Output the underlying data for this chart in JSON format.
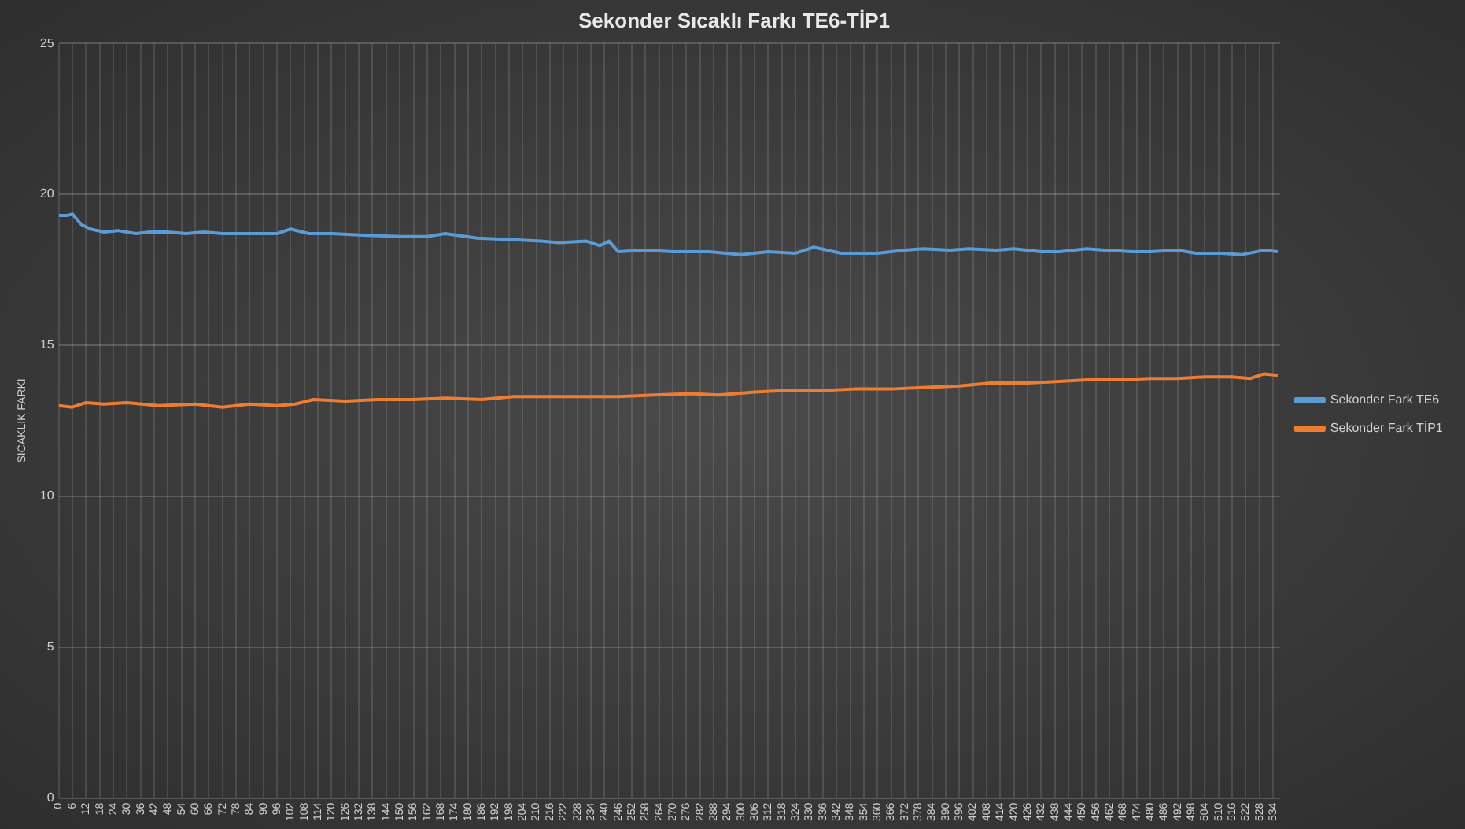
{
  "chart_data": {
    "type": "line",
    "title": "Sekonder Sıcaklı Farkı TE6-TİP1",
    "ylabel": "SICAKLIK FARKI",
    "xlim": [
      0,
      537
    ],
    "ylim": [
      0,
      25
    ],
    "yticks": [
      0,
      5,
      10,
      15,
      20,
      25
    ],
    "xticks": [
      0,
      6,
      12,
      18,
      24,
      30,
      36,
      42,
      48,
      54,
      60,
      66,
      72,
      78,
      84,
      90,
      96,
      102,
      108,
      114,
      120,
      126,
      132,
      138,
      144,
      150,
      156,
      162,
      168,
      174,
      180,
      186,
      192,
      198,
      204,
      210,
      216,
      222,
      228,
      234,
      240,
      246,
      252,
      258,
      264,
      270,
      276,
      282,
      288,
      294,
      300,
      306,
      312,
      318,
      324,
      330,
      336,
      342,
      348,
      354,
      360,
      366,
      372,
      378,
      384,
      390,
      396,
      402,
      408,
      414,
      420,
      426,
      432,
      438,
      444,
      450,
      456,
      462,
      468,
      474,
      480,
      486,
      492,
      498,
      504,
      510,
      516,
      522,
      528,
      534
    ],
    "grid": true,
    "legend": "right",
    "marker": "none",
    "line_style": "solid",
    "series": [
      {
        "name": "Sekonder Fark TE6",
        "color": "#5b9bd5",
        "x": [
          0,
          4,
          6,
          10,
          14,
          20,
          26,
          34,
          40,
          48,
          56,
          64,
          72,
          84,
          96,
          102,
          110,
          120,
          134,
          150,
          162,
          170,
          184,
          200,
          212,
          220,
          232,
          238,
          242,
          246,
          258,
          270,
          286,
          300,
          312,
          324,
          332,
          344,
          360,
          372,
          380,
          392,
          400,
          412,
          420,
          432,
          440,
          452,
          460,
          472,
          480,
          492,
          500,
          512,
          520,
          530,
          536
        ],
        "values": [
          19.3,
          19.3,
          19.35,
          19.0,
          18.85,
          18.75,
          18.8,
          18.7,
          18.75,
          18.75,
          18.7,
          18.75,
          18.7,
          18.7,
          18.7,
          18.85,
          18.7,
          18.7,
          18.65,
          18.6,
          18.6,
          18.7,
          18.55,
          18.5,
          18.45,
          18.4,
          18.45,
          18.3,
          18.45,
          18.1,
          18.15,
          18.1,
          18.1,
          18.0,
          18.1,
          18.05,
          18.25,
          18.05,
          18.05,
          18.15,
          18.2,
          18.15,
          18.2,
          18.15,
          18.2,
          18.1,
          18.1,
          18.2,
          18.15,
          18.1,
          18.1,
          18.15,
          18.05,
          18.05,
          18.0,
          18.15,
          18.1
        ]
      },
      {
        "name": "Sekonder Fark TİP1",
        "color": "#ed7d31",
        "x": [
          0,
          6,
          12,
          20,
          30,
          44,
          60,
          72,
          84,
          96,
          104,
          112,
          126,
          140,
          156,
          170,
          186,
          200,
          216,
          230,
          246,
          262,
          278,
          290,
          306,
          320,
          336,
          350,
          366,
          380,
          396,
          410,
          426,
          440,
          452,
          466,
          480,
          492,
          504,
          516,
          524,
          530,
          536
        ],
        "values": [
          13.0,
          12.95,
          13.1,
          13.05,
          13.1,
          13.0,
          13.05,
          12.95,
          13.05,
          13.0,
          13.05,
          13.2,
          13.15,
          13.2,
          13.2,
          13.25,
          13.2,
          13.3,
          13.3,
          13.3,
          13.3,
          13.35,
          13.4,
          13.35,
          13.45,
          13.5,
          13.5,
          13.55,
          13.55,
          13.6,
          13.65,
          13.75,
          13.75,
          13.8,
          13.85,
          13.85,
          13.9,
          13.9,
          13.95,
          13.95,
          13.9,
          14.05,
          14.0
        ]
      }
    ]
  }
}
